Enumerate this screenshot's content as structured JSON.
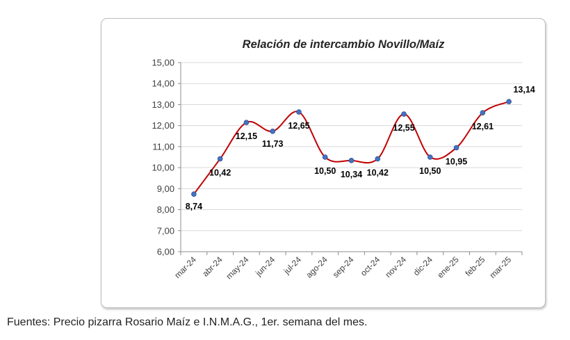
{
  "chart_data": {
    "type": "line",
    "title": "Relación de intercambio Novillo/Maíz",
    "categories": [
      "mar-24",
      "abr-24",
      "may-24",
      "jun-24",
      "jul-24",
      "ago-24",
      "sep-24",
      "oct-24",
      "nov-24",
      "dic-24",
      "ene-25",
      "feb-25",
      "mar-25"
    ],
    "series": [
      {
        "values": [
          8.74,
          10.42,
          12.15,
          11.73,
          12.65,
          10.5,
          10.34,
          10.42,
          12.55,
          10.5,
          10.95,
          12.61,
          13.14
        ]
      }
    ],
    "data_labels": [
      "8,74",
      "10,42",
      "12,15",
      "11,73",
      "12,65",
      "10,50",
      "10,34",
      "10,42",
      "12,55",
      "10,50",
      "10,95",
      "12,61",
      "13,14"
    ],
    "yticks": [
      "6,00",
      "7,00",
      "8,00",
      "9,00",
      "10,00",
      "11,00",
      "12,00",
      "13,00",
      "14,00",
      "15,00"
    ],
    "ylim": [
      6,
      15
    ],
    "grid": true,
    "line_color": "#c00000",
    "marker_color": "#4472c4",
    "grid_color": "#d9d9d9"
  },
  "footer": {
    "source": "Fuentes: Precio pizarra Rosario Maíz e I.N.M.A.G., 1er. semana del mes."
  }
}
